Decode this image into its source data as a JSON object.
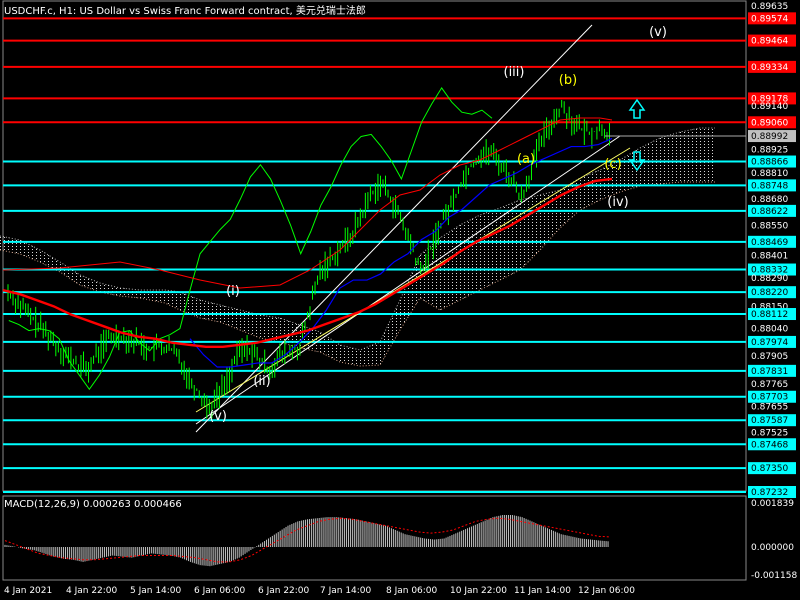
{
  "header": {
    "title": "USDCHF.c, H1:  US Dollar vs Swiss Franc Forward contract, 美元兑瑞士法郎"
  },
  "macd_panel": {
    "title": "MACD(12,26,9) 0.000263 0.000466",
    "axis_labels": [
      "0.001839",
      "0.000000",
      "-0.001158"
    ]
  },
  "colors": {
    "background": "#000000",
    "candles": "#00ff00",
    "red_level": "#ff0000",
    "cyan_level": "#00ffff",
    "ma_red": "#ff0000",
    "ma_blue": "#0000ff",
    "kijun_red": "#ff0000",
    "chikou_green": "#00ff00",
    "channel": "#ffffff",
    "channel_yellow": "#ffff66",
    "cloud": "#ffffff",
    "cloud_bear": "#ffc0a0",
    "wave_white": "#ffffff",
    "wave_yellow": "#ffff00",
    "arrow": "#00ffff"
  },
  "chart_data": {
    "type": "line",
    "title": "USDCHF.c, H1:  US Dollar vs Swiss Franc Forward contract, 美元兑瑞士法郎",
    "xlabel": "",
    "ylabel": "",
    "ylim": [
      0.87232,
      0.89635
    ],
    "grid": false,
    "x_tick_labels": [
      "4 Jan 2021",
      "4 Jan 22:00",
      "5 Jan 14:00",
      "6 Jan 06:00",
      "6 Jan 22:00",
      "7 Jan 14:00",
      "8 Jan 06:00",
      "10 Jan 22:00",
      "11 Jan 14:00",
      "12 Jan 06:00"
    ],
    "y_tick_labels": [
      "0.89635",
      "0.89574",
      "0.89464",
      "0.89334",
      "0.89178",
      "0.89140",
      "0.89060",
      "0.88992",
      "0.88925",
      "0.88866",
      "0.88810",
      "0.88748",
      "0.88680",
      "0.88622",
      "0.88550",
      "0.88469",
      "0.88401",
      "0.88332",
      "0.88290",
      "0.88220",
      "0.88150",
      "0.88112",
      "0.88040",
      "0.87974",
      "0.87905",
      "0.87831",
      "0.87765",
      "0.87703",
      "0.87655",
      "0.87587",
      "0.87525",
      "0.87468",
      "0.87350",
      "0.87232"
    ],
    "levels_red": [
      0.89574,
      0.89464,
      0.89334,
      0.89178,
      0.8906
    ],
    "levels_cyan": [
      0.88866,
      0.88748,
      0.88622,
      0.88469,
      0.88332,
      0.8822,
      0.88112,
      0.87974,
      0.87831,
      0.87703,
      0.87587,
      0.87468,
      0.8735,
      0.87232
    ],
    "current_price": 0.88992,
    "price_series": [
      0.8822,
      0.8817,
      0.8811,
      0.8806,
      0.8801,
      0.8795,
      0.879,
      0.8786,
      0.8784,
      0.8793,
      0.8799,
      0.8801,
      0.8799,
      0.8797,
      0.8794,
      0.8795,
      0.8794,
      0.879,
      0.8779,
      0.8772,
      0.8765,
      0.8772,
      0.8781,
      0.8793,
      0.8794,
      0.8788,
      0.8784,
      0.879,
      0.8792,
      0.8795,
      0.8814,
      0.8832,
      0.8838,
      0.8844,
      0.8849,
      0.8859,
      0.887,
      0.8876,
      0.8869,
      0.8858,
      0.8846,
      0.8832,
      0.8843,
      0.8856,
      0.8865,
      0.8876,
      0.8885,
      0.889,
      0.8891,
      0.8885,
      0.8878,
      0.8869,
      0.8883,
      0.8897,
      0.8906,
      0.8914,
      0.8907,
      0.8902,
      0.8901,
      0.8903,
      0.8899
    ],
    "ma_red": [
      0.8823,
      0.8821,
      0.8818,
      0.8815,
      0.8811,
      0.8808,
      0.8805,
      0.8802,
      0.88,
      0.8799,
      0.8797,
      0.8796,
      0.8795,
      0.8795,
      0.8796,
      0.8797,
      0.8799,
      0.8801,
      0.8803,
      0.8806,
      0.8809,
      0.8812,
      0.8816,
      0.8821,
      0.8826,
      0.8831,
      0.8836,
      0.8842,
      0.8847,
      0.8851,
      0.8855,
      0.886,
      0.8865,
      0.887,
      0.8874,
      0.8877,
      0.8878
    ],
    "ma_blue": [
      0.8799,
      0.8791,
      0.8785,
      0.8785,
      0.8786,
      0.8787,
      0.8787,
      0.8791,
      0.8797,
      0.8804,
      0.8813,
      0.8824,
      0.8828,
      0.8828,
      0.8831,
      0.8837,
      0.8841,
      0.8848,
      0.8852,
      0.8859,
      0.8863,
      0.8869,
      0.8875,
      0.8878,
      0.8881,
      0.8885,
      0.8888,
      0.8891,
      0.8894,
      0.8894,
      0.8895,
      0.8898
    ],
    "waves": [
      "(v)",
      "(i)",
      "(ii)",
      "(iii)",
      "(a)",
      "(b)",
      "(c)",
      "(iv)",
      "(v)"
    ],
    "macd_hist": [
      0.0001,
      2e-05,
      -8e-05,
      -0.00015,
      -0.0003,
      -0.00045,
      -0.00055,
      -0.0006,
      -0.0007,
      -0.0006,
      -0.0005,
      -0.0004,
      -0.00045,
      -0.0005,
      -0.0004,
      -0.0003,
      -0.00035,
      -0.0004,
      -0.0005,
      -0.0007,
      -0.00085,
      -0.0009,
      -0.0008,
      -0.0007,
      -0.0005,
      -0.0002,
      0.0001,
      0.0004,
      0.0007,
      0.001,
      0.0012,
      0.0013,
      0.00135,
      0.0014,
      0.0014,
      0.00135,
      0.0013,
      0.0012,
      0.0011,
      0.001,
      0.0008,
      0.0006,
      0.0005,
      0.0004,
      0.00035,
      0.0004,
      0.0006,
      0.0008,
      0.001,
      0.0012,
      0.0014,
      0.0015,
      0.0015,
      0.0014,
      0.0012,
      0.001,
      0.0008,
      0.0006,
      0.0005,
      0.0004,
      0.00035,
      0.0003,
      0.00026
    ],
    "macd_signal": [
      0.0003,
      0.0001,
      -0.0001,
      -0.0003,
      -0.0004,
      -0.0005,
      -0.00055,
      -0.0006,
      -0.0006,
      -0.00055,
      -0.0005,
      -0.00045,
      -0.0004,
      -0.0004,
      -0.0004,
      -0.0004,
      -0.00045,
      -0.0005,
      -0.0006,
      -0.0007,
      -0.0007,
      -0.0006,
      -0.0004,
      -0.0001,
      0.0002,
      0.0005,
      0.0008,
      0.001,
      0.0012,
      0.0013,
      0.00135,
      0.0013,
      0.0012,
      0.0011,
      0.001,
      0.0009,
      0.0008,
      0.0007,
      0.00065,
      0.0007,
      0.0008,
      0.001,
      0.0012,
      0.0013,
      0.00135,
      0.0013,
      0.0012,
      0.0011,
      0.001,
      0.0009,
      0.0008,
      0.0007,
      0.0006,
      0.0005,
      0.00047
    ]
  }
}
